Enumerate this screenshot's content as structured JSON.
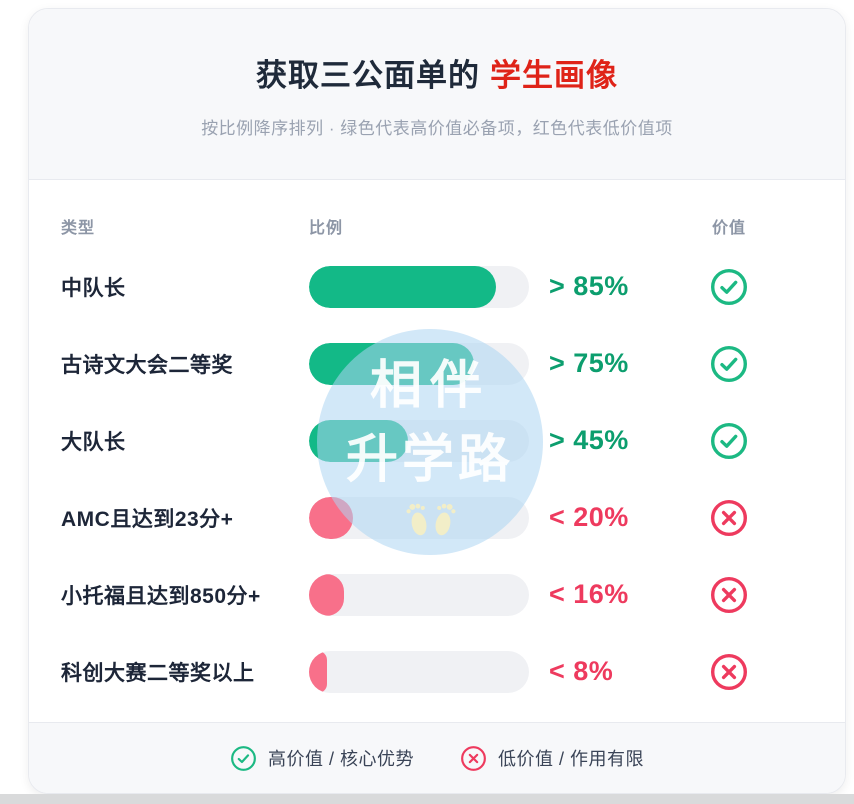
{
  "header": {
    "title_main": "获取三公面单的",
    "title_accent": "学生画像",
    "subtitle": "按比例降序排列 · 绿色代表高价值必备项，红色代表低价值项"
  },
  "columns": {
    "type": "类型",
    "ratio": "比例",
    "value": "价值"
  },
  "rows": [
    {
      "label": "中队长",
      "pct": 85,
      "pct_label": "> 85%",
      "tone": "high",
      "icon": "check-circle"
    },
    {
      "label": "古诗文大会二等奖",
      "pct": 75,
      "pct_label": "> 75%",
      "tone": "high",
      "icon": "check-circle"
    },
    {
      "label": "大队长",
      "pct": 45,
      "pct_label": "> 45%",
      "tone": "high",
      "icon": "check-circle"
    },
    {
      "label": "AMC且达到23分+",
      "pct": 20,
      "pct_label": "< 20%",
      "tone": "low",
      "icon": "x-circle"
    },
    {
      "label": "小托福且达到850分+",
      "pct": 16,
      "pct_label": "< 16%",
      "tone": "low",
      "icon": "x-circle"
    },
    {
      "label": "科创大赛二等奖以上",
      "pct": 8,
      "pct_label": "< 8%",
      "tone": "low",
      "icon": "x-circle"
    }
  ],
  "legend": {
    "high": "高价值 / 核心优势",
    "low": "低价值 / 作用有限"
  },
  "watermark": {
    "line1": "相伴",
    "line2": "升学路",
    "icon": "baby-footprints"
  },
  "colors": {
    "green_fill": "#13b987",
    "green_text": "#0c9e6e",
    "green_icon": "#1cb983",
    "red_fill": "#f8708a",
    "red_text": "#ee3a5e",
    "accent_red": "#df2318",
    "title_dark": "#1f2a3a",
    "subtitle_gray": "#9aa2b1",
    "header_gray": "#8d96a6",
    "label_dark": "#1d2638",
    "track_gray": "#f0f1f4",
    "footer_text": "#3a4457",
    "section_bg": "#f7f8fa",
    "border": "#e8eaef",
    "page_strip": "#d9dadb",
    "watermark_blue": "rgba(173,214,242,0.55)",
    "watermark_feet": "#f2eec8"
  },
  "chart_data": {
    "type": "bar",
    "orientation": "horizontal",
    "title": "获取三公面单的 学生画像",
    "subtitle": "按比例降序排列 · 绿色代表高价值必备项，红色代表低价值项",
    "categories": [
      "中队长",
      "古诗文大会二等奖",
      "大队长",
      "AMC且达到23分+",
      "小托福且达到850分+",
      "科创大赛二等奖以上"
    ],
    "values": [
      85,
      75,
      45,
      20,
      16,
      8
    ],
    "value_labels": [
      "> 85%",
      "> 75%",
      "> 45%",
      "< 20%",
      "< 16%",
      "< 8%"
    ],
    "value_ratings": [
      "high",
      "high",
      "high",
      "low",
      "low",
      "low"
    ],
    "bar_colors": [
      "#13b987",
      "#13b987",
      "#13b987",
      "#f8708a",
      "#f8708a",
      "#f8708a"
    ],
    "xlim": [
      0,
      100
    ],
    "grid": false,
    "legend_entries": [
      "高价值 / 核心优势",
      "低价值 / 作用有限"
    ],
    "legend_position": "bottom",
    "sort": "descending"
  }
}
